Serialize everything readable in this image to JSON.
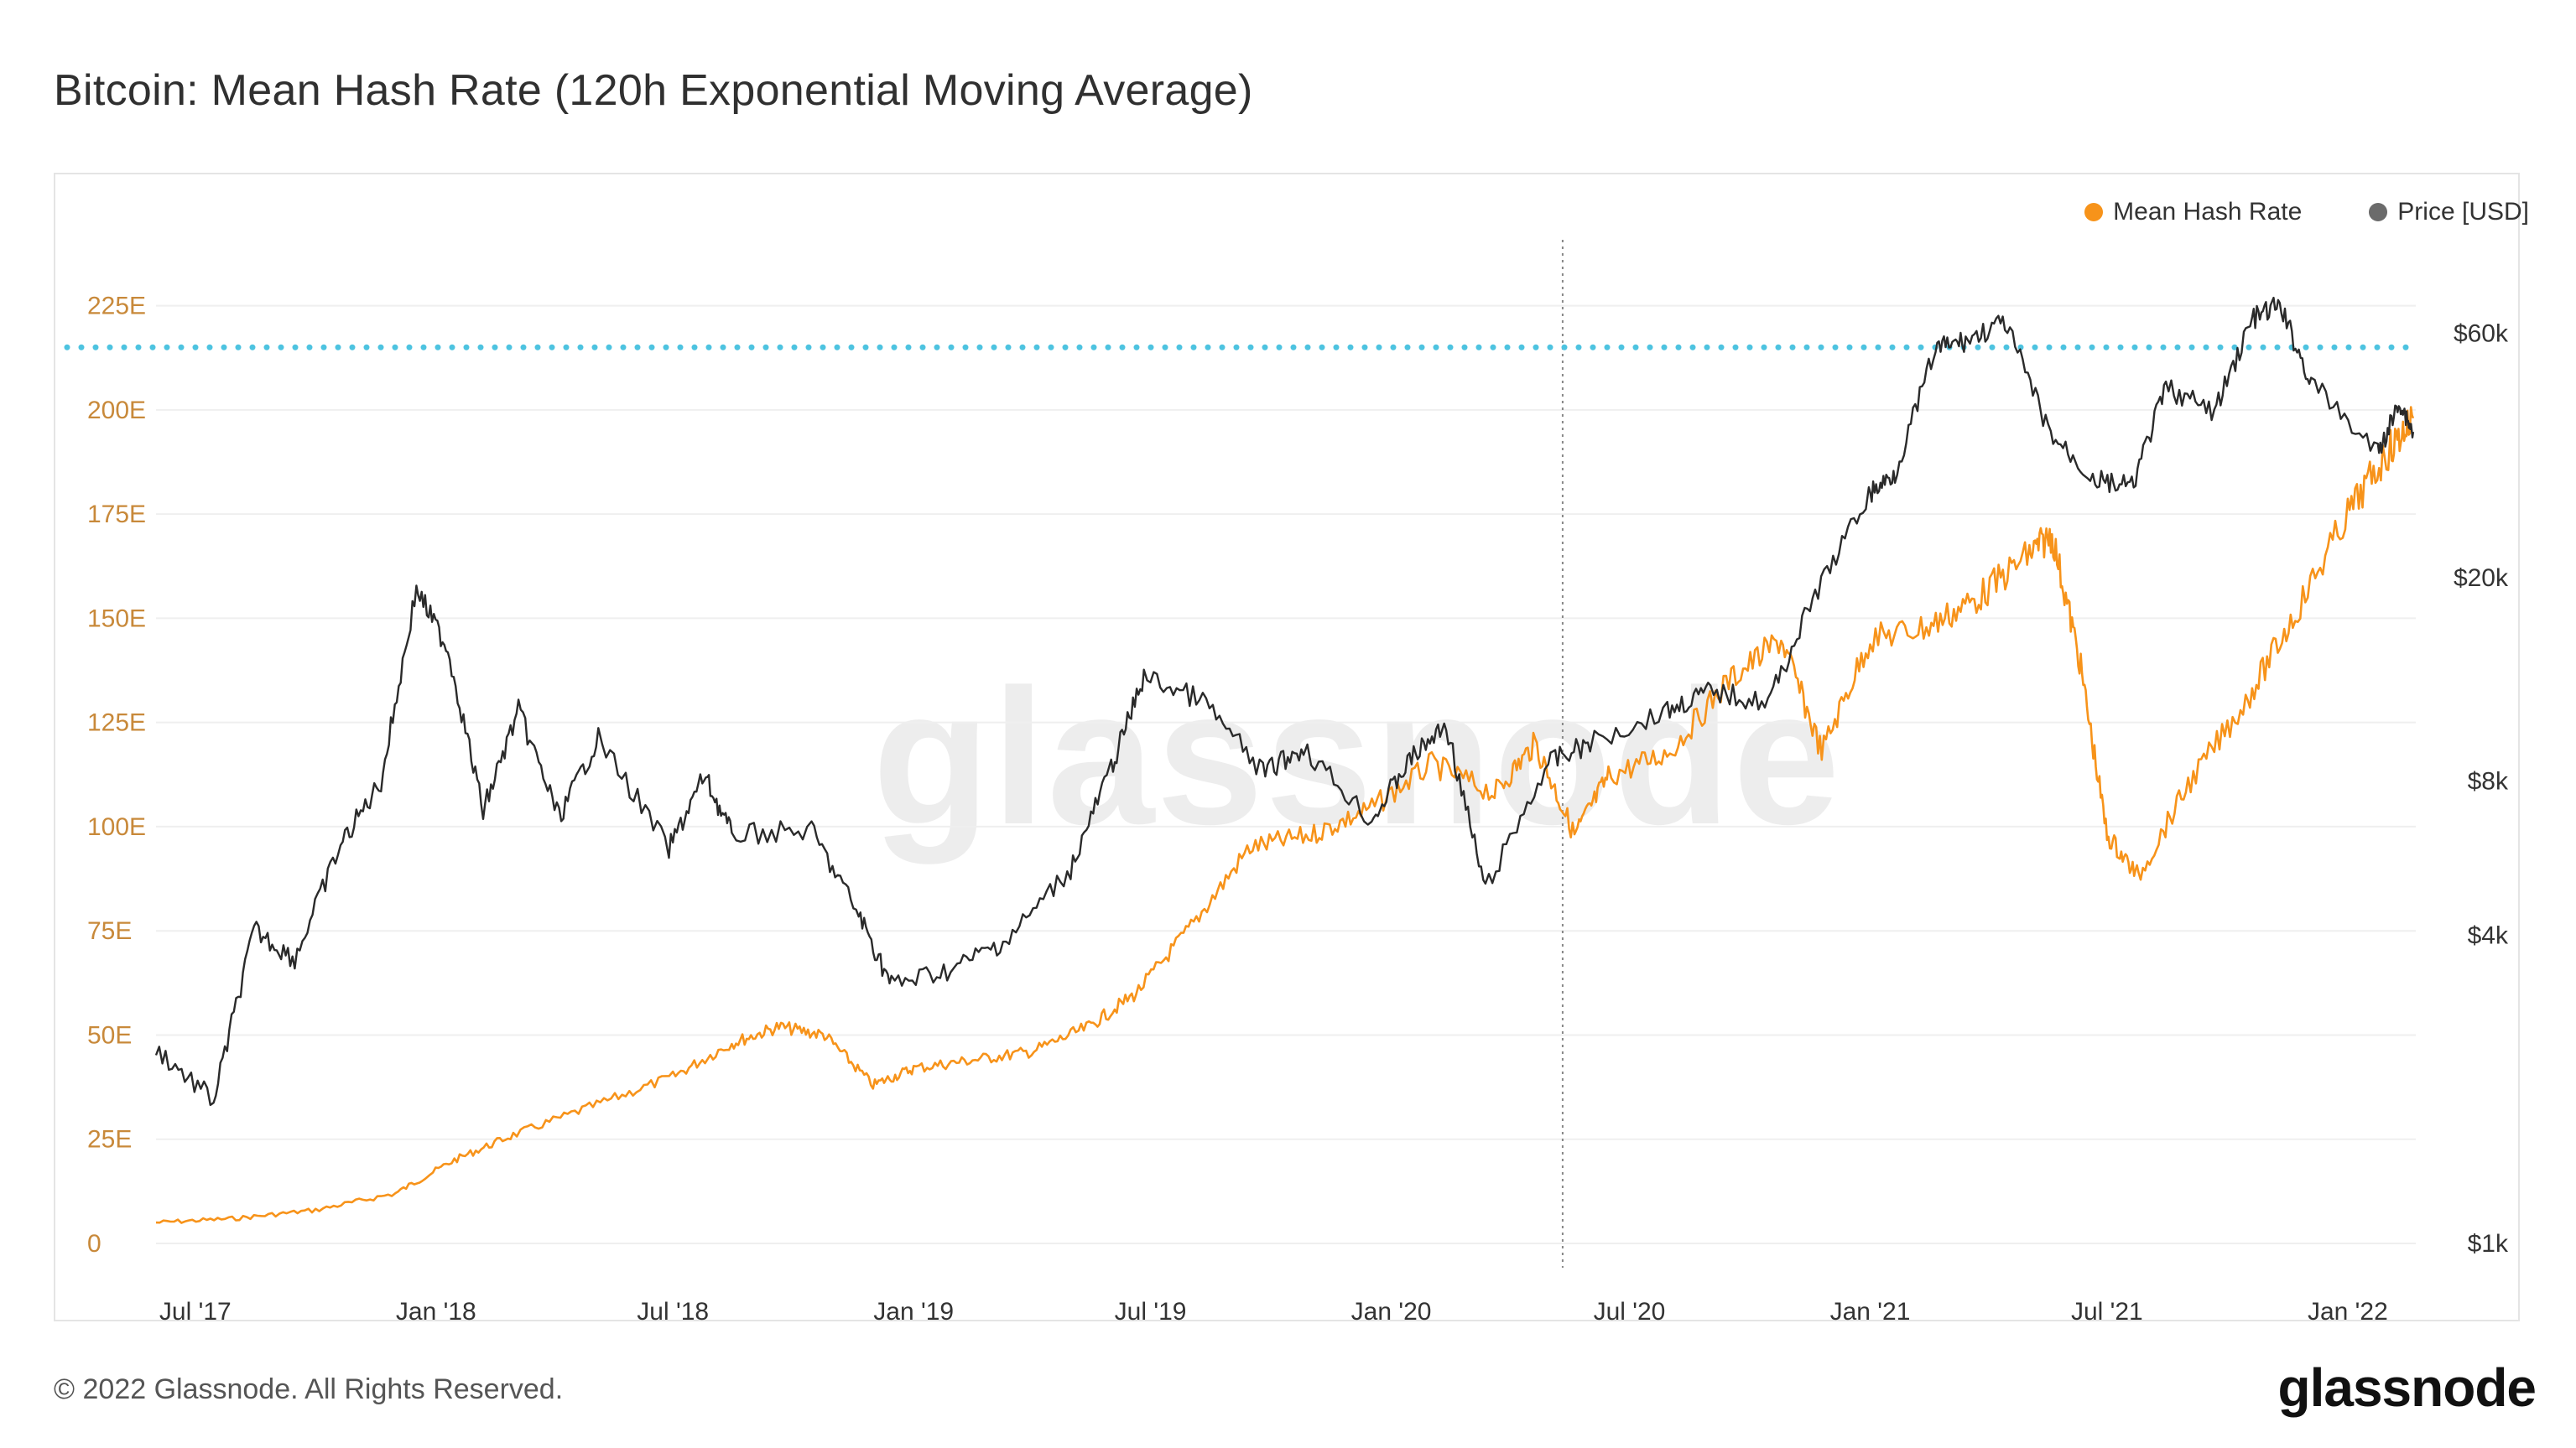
{
  "title": "Bitcoin: Mean Hash Rate (120h Exponential Moving Average)",
  "legend": [
    {
      "label": "Mean Hash Rate",
      "color": "#f7931a"
    },
    {
      "label": "Price [USD]",
      "color": "#6b6b6b"
    }
  ],
  "copyright": "© 2022 Glassnode. All Rights Reserved.",
  "brand": "glassnode",
  "watermark": "glassnode",
  "chart_data": {
    "type": "line",
    "title": "Bitcoin: Mean Hash Rate (120h Exponential Moving Average)",
    "x_ticks": [
      "Jul '17",
      "Jan '18",
      "Jul '18",
      "Jan '19",
      "Jul '19",
      "Jan '20",
      "Jul '20",
      "Jan '21",
      "Jul '21",
      "Jan '22"
    ],
    "y_left_ticks": [
      "0",
      "25E",
      "50E",
      "75E",
      "100E",
      "125E",
      "150E",
      "175E",
      "200E",
      "225E"
    ],
    "y_left_range": [
      0,
      225
    ],
    "y_right_ticks": [
      {
        "label": "$1k",
        "value": 1000
      },
      {
        "label": "$4k",
        "value": 4000
      },
      {
        "label": "$8k",
        "value": 8000
      },
      {
        "label": "$20k",
        "value": 20000
      },
      {
        "label": "$60k",
        "value": 60000
      }
    ],
    "y_right_scale": "log",
    "reference_line": {
      "axis": "left",
      "value": 215,
      "color": "#4dc3e0",
      "style": "dotted"
    },
    "vertical_marker": {
      "date": "2020-05-11",
      "style": "dotted"
    },
    "series": [
      {
        "name": "Mean Hash Rate",
        "axis": "left",
        "color": "#f7931a",
        "points": [
          [
            "2017-06-01",
            5
          ],
          [
            "2017-08-01",
            6
          ],
          [
            "2017-10-01",
            8
          ],
          [
            "2017-12-01",
            12
          ],
          [
            "2018-01-15",
            20
          ],
          [
            "2018-03-01",
            26
          ],
          [
            "2018-05-01",
            33
          ],
          [
            "2018-07-01",
            40
          ],
          [
            "2018-08-15",
            48
          ],
          [
            "2018-09-20",
            52
          ],
          [
            "2018-10-25",
            50
          ],
          [
            "2018-12-01",
            38
          ],
          [
            "2019-01-01",
            42
          ],
          [
            "2019-02-15",
            44
          ],
          [
            "2019-04-01",
            46
          ],
          [
            "2019-05-15",
            52
          ],
          [
            "2019-06-20",
            60
          ],
          [
            "2019-08-01",
            76
          ],
          [
            "2019-09-15",
            95
          ],
          [
            "2019-11-01",
            98
          ],
          [
            "2019-12-15",
            104
          ],
          [
            "2020-02-01",
            115
          ],
          [
            "2020-03-20",
            108
          ],
          [
            "2020-04-20",
            120
          ],
          [
            "2020-05-20",
            98
          ],
          [
            "2020-06-15",
            112
          ],
          [
            "2020-08-01",
            118
          ],
          [
            "2020-09-15",
            135
          ],
          [
            "2020-10-25",
            145
          ],
          [
            "2020-11-25",
            118
          ],
          [
            "2021-01-01",
            145
          ],
          [
            "2021-02-15",
            148
          ],
          [
            "2021-03-25",
            155
          ],
          [
            "2021-05-01",
            165
          ],
          [
            "2021-05-20",
            170
          ],
          [
            "2021-06-10",
            140
          ],
          [
            "2021-07-01",
            98
          ],
          [
            "2021-07-25",
            88
          ],
          [
            "2021-09-01",
            110
          ],
          [
            "2021-10-15",
            130
          ],
          [
            "2021-11-20",
            150
          ],
          [
            "2022-01-01",
            175
          ],
          [
            "2022-02-01",
            190
          ],
          [
            "2022-02-20",
            198
          ]
        ]
      },
      {
        "name": "Price [USD]",
        "axis": "right",
        "color": "#2a2a2a",
        "points": [
          [
            "2017-06-01",
            2400
          ],
          [
            "2017-07-15",
            1900
          ],
          [
            "2017-08-15",
            4100
          ],
          [
            "2017-09-15",
            3600
          ],
          [
            "2017-10-20",
            6000
          ],
          [
            "2017-11-20",
            8000
          ],
          [
            "2017-12-17",
            19000
          ],
          [
            "2018-01-10",
            14500
          ],
          [
            "2018-02-06",
            7000
          ],
          [
            "2018-03-05",
            11000
          ],
          [
            "2018-04-05",
            6800
          ],
          [
            "2018-05-05",
            9700
          ],
          [
            "2018-06-28",
            5900
          ],
          [
            "2018-07-25",
            8200
          ],
          [
            "2018-08-15",
            6300
          ],
          [
            "2018-10-15",
            6400
          ],
          [
            "2018-11-20",
            4400
          ],
          [
            "2018-12-15",
            3200
          ],
          [
            "2019-02-01",
            3450
          ],
          [
            "2019-03-15",
            3950
          ],
          [
            "2019-05-01",
            5400
          ],
          [
            "2019-06-01",
            8500
          ],
          [
            "2019-06-26",
            12800
          ],
          [
            "2019-08-10",
            11500
          ],
          [
            "2019-09-25",
            8300
          ],
          [
            "2019-10-26",
            9300
          ],
          [
            "2019-12-17",
            6700
          ],
          [
            "2020-01-15",
            8800
          ],
          [
            "2020-02-12",
            10300
          ],
          [
            "2020-03-13",
            4900
          ],
          [
            "2020-04-30",
            8700
          ],
          [
            "2020-06-01",
            9500
          ],
          [
            "2020-07-30",
            11000
          ],
          [
            "2020-09-01",
            12000
          ],
          [
            "2020-10-15",
            11400
          ],
          [
            "2020-11-20",
            18500
          ],
          [
            "2020-12-31",
            29000
          ],
          [
            "2021-01-20",
            32000
          ],
          [
            "2021-02-20",
            56000
          ],
          [
            "2021-03-15",
            58000
          ],
          [
            "2021-04-14",
            63000
          ],
          [
            "2021-05-19",
            38000
          ],
          [
            "2021-06-22",
            31000
          ],
          [
            "2021-07-20",
            30000
          ],
          [
            "2021-08-15",
            47000
          ],
          [
            "2021-09-21",
            42000
          ],
          [
            "2021-10-20",
            64000
          ],
          [
            "2021-11-10",
            68000
          ],
          [
            "2021-12-04",
            48000
          ],
          [
            "2022-01-24",
            35000
          ],
          [
            "2022-02-10",
            44000
          ],
          [
            "2022-02-20",
            38500
          ]
        ]
      }
    ]
  }
}
